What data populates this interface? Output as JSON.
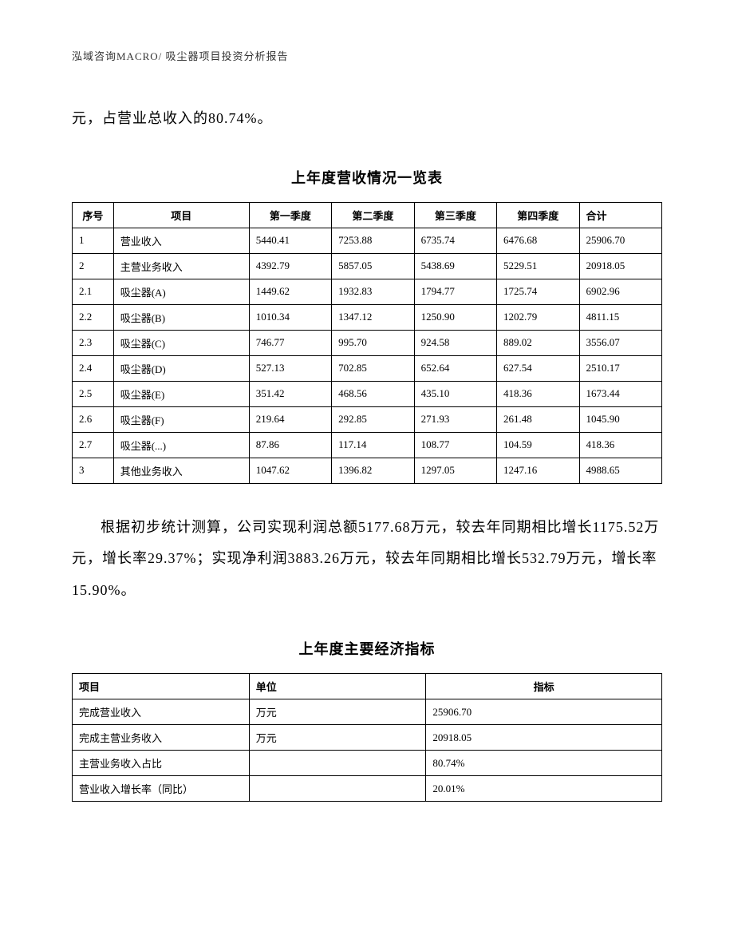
{
  "header": "泓域咨询MACRO/   吸尘器项目投资分析报告",
  "intro_text": "元，占营业总收入的80.74%。",
  "table1": {
    "title": "上年度营收情况一览表",
    "headers": [
      "序号",
      "项目",
      "第一季度",
      "第二季度",
      "第三季度",
      "第四季度",
      "合计"
    ],
    "rows": [
      [
        "1",
        "营业收入",
        "5440.41",
        "7253.88",
        "6735.74",
        "6476.68",
        "25906.70"
      ],
      [
        "2",
        "主营业务收入",
        "4392.79",
        "5857.05",
        "5438.69",
        "5229.51",
        "20918.05"
      ],
      [
        "2.1",
        "吸尘器(A)",
        "1449.62",
        "1932.83",
        "1794.77",
        "1725.74",
        "6902.96"
      ],
      [
        "2.2",
        "吸尘器(B)",
        "1010.34",
        "1347.12",
        "1250.90",
        "1202.79",
        "4811.15"
      ],
      [
        "2.3",
        "吸尘器(C)",
        "746.77",
        "995.70",
        "924.58",
        "889.02",
        "3556.07"
      ],
      [
        "2.4",
        "吸尘器(D)",
        "527.13",
        "702.85",
        "652.64",
        "627.54",
        "2510.17"
      ],
      [
        "2.5",
        "吸尘器(E)",
        "351.42",
        "468.56",
        "435.10",
        "418.36",
        "1673.44"
      ],
      [
        "2.6",
        "吸尘器(F)",
        "219.64",
        "292.85",
        "271.93",
        "261.48",
        "1045.90"
      ],
      [
        "2.7",
        "吸尘器(...)",
        "87.86",
        "117.14",
        "108.77",
        "104.59",
        "418.36"
      ],
      [
        "3",
        "其他业务收入",
        "1047.62",
        "1396.82",
        "1297.05",
        "1247.16",
        "4988.65"
      ]
    ]
  },
  "paragraph": "根据初步统计测算，公司实现利润总额5177.68万元，较去年同期相比增长1175.52万元，增长率29.37%；实现净利润3883.26万元，较去年同期相比增长532.79万元，增长率15.90%。",
  "table2": {
    "title": "上年度主要经济指标",
    "headers": [
      "项目",
      "单位",
      "指标"
    ],
    "rows": [
      [
        "完成营业收入",
        "万元",
        "25906.70"
      ],
      [
        "完成主营业务收入",
        "万元",
        "20918.05"
      ],
      [
        "主营业务收入占比",
        "",
        "80.74%"
      ],
      [
        "营业收入增长率（同比）",
        "",
        "20.01%"
      ]
    ]
  }
}
